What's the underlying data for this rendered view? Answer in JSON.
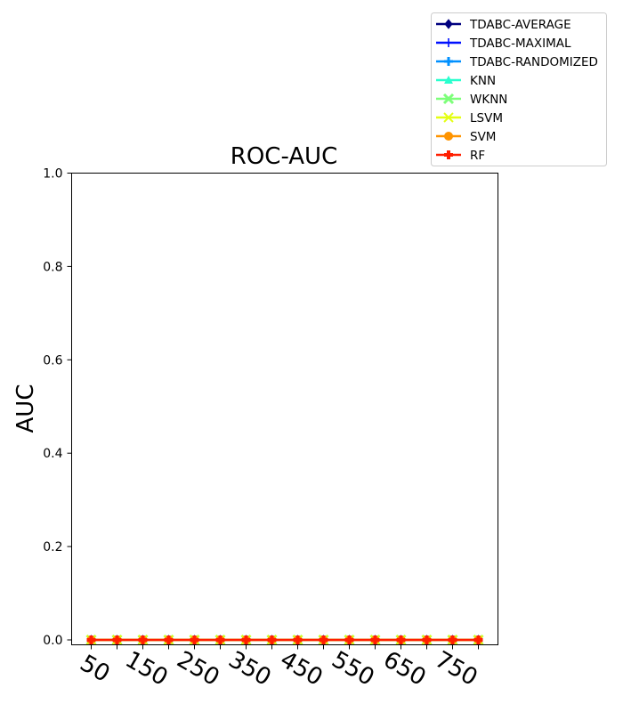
{
  "chart_data": {
    "type": "line",
    "title": "ROC-AUC",
    "xlabel": "",
    "ylabel": "AUC",
    "x": [
      50,
      100,
      150,
      200,
      250,
      300,
      350,
      400,
      450,
      500,
      550,
      600,
      650,
      700,
      750,
      800
    ],
    "x_tick_labels": [
      "50",
      "150",
      "250",
      "350",
      "450",
      "550",
      "650",
      "750"
    ],
    "x_tick_label_values": [
      50,
      150,
      250,
      350,
      450,
      550,
      650,
      750
    ],
    "y_ticks": [
      0.0,
      0.2,
      0.4,
      0.6,
      0.8,
      1.0
    ],
    "y_tick_labels": [
      "0.0",
      "0.2",
      "0.4",
      "0.6",
      "0.8",
      "1.0"
    ],
    "ylim": [
      -0.02,
      1.0
    ],
    "grid": false,
    "legend_position": "top-right, outside plot area",
    "series": [
      {
        "name": "TDABC-AVERAGE",
        "color": "#00007f",
        "marker": "diamond",
        "values": [
          0,
          0,
          0,
          0,
          0,
          0,
          0,
          0,
          0,
          0,
          0,
          0,
          0,
          0,
          0,
          0
        ]
      },
      {
        "name": "TDABC-MAXIMAL",
        "color": "#0010ff",
        "marker": "thin-plus",
        "values": [
          0,
          0,
          0,
          0,
          0,
          0,
          0,
          0,
          0,
          0,
          0,
          0,
          0,
          0,
          0,
          0
        ]
      },
      {
        "name": "TDABC-RANDOMIZED",
        "color": "#0090ff",
        "marker": "plus",
        "values": [
          0,
          0,
          0,
          0,
          0,
          0,
          0,
          0,
          0,
          0,
          0,
          0,
          0,
          0,
          0,
          0
        ]
      },
      {
        "name": "KNN",
        "color": "#29ffce",
        "marker": "triangle-up",
        "values": [
          0,
          0,
          0,
          0,
          0,
          0,
          0,
          0,
          0,
          0,
          0,
          0,
          0,
          0,
          0,
          0
        ]
      },
      {
        "name": "WKNN",
        "color": "#7dff7a",
        "marker": "x-filled",
        "values": [
          0,
          0,
          0,
          0,
          0,
          0,
          0,
          0,
          0,
          0,
          0,
          0,
          0,
          0,
          0,
          0
        ]
      },
      {
        "name": "LSVM",
        "color": "#e4ff13",
        "marker": "star-x",
        "values": [
          0,
          0,
          0,
          0,
          0,
          0,
          0,
          0,
          0,
          0,
          0,
          0,
          0,
          0,
          0,
          0
        ]
      },
      {
        "name": "SVM",
        "color": "#ff9400",
        "marker": "octagon",
        "values": [
          0,
          0,
          0,
          0,
          0,
          0,
          0,
          0,
          0,
          0,
          0,
          0,
          0,
          0,
          0,
          0
        ]
      },
      {
        "name": "RF",
        "color": "#ff1e00",
        "marker": "plus-filled",
        "values": [
          0,
          0,
          0,
          0,
          0,
          0,
          0,
          0,
          0,
          0,
          0,
          0,
          0,
          0,
          0,
          0
        ]
      }
    ]
  }
}
